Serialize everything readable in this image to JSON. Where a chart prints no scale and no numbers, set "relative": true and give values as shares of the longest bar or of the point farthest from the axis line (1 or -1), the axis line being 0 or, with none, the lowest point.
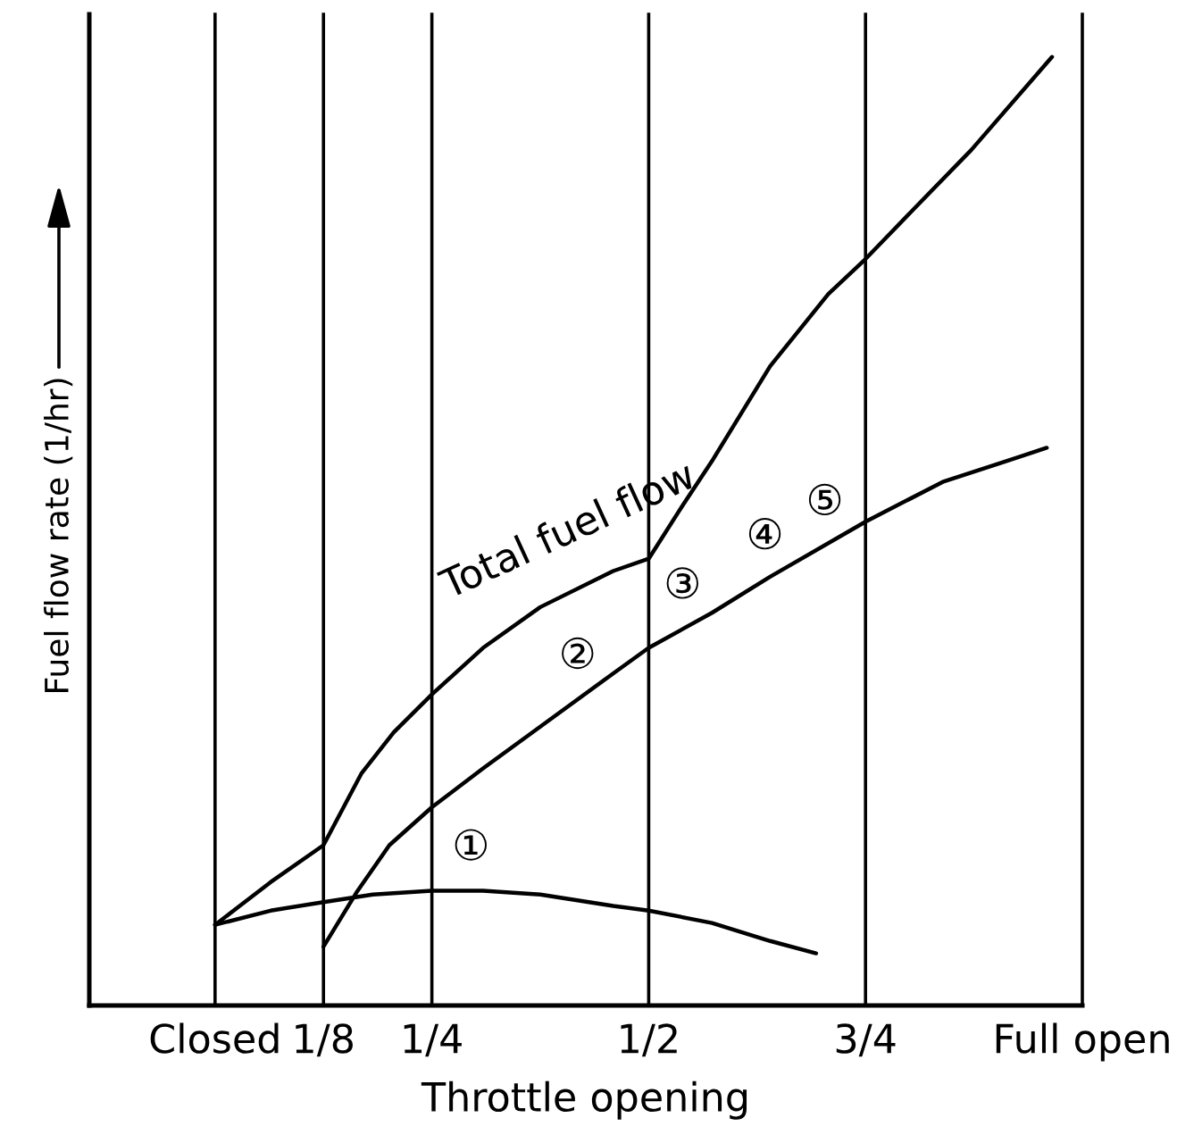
{
  "chart_data": {
    "type": "line",
    "relative": true,
    "xlabel": "Throttle opening",
    "ylabel": "Fuel flow rate (1/hr)",
    "xlim": [
      -0.145,
      1
    ],
    "xticks": [
      {
        "value": 0,
        "label": "Closed"
      },
      {
        "value": 0.125,
        "label": "1/8"
      },
      {
        "value": 0.25,
        "label": "1/4"
      },
      {
        "value": 0.5,
        "label": "1/2"
      },
      {
        "value": 0.75,
        "label": "3/4"
      },
      {
        "value": 1,
        "label": "Full open"
      }
    ],
    "grid": "x",
    "line_style": "solid",
    "series": [
      {
        "name": "Total fuel flow",
        "color": "#000000",
        "x": [
          0,
          0.064,
          0.125,
          0.169,
          0.206,
          0.25,
          0.309,
          0.375,
          0.459,
          0.5,
          0.539,
          0.573,
          0.64,
          0.707,
          0.75,
          0.806,
          0.872,
          0.965
        ],
        "values": [
          0.085,
          0.13,
          0.169,
          0.245,
          0.288,
          0.328,
          0.377,
          0.42,
          0.458,
          0.471,
          0.527,
          0.574,
          0.674,
          0.75,
          0.787,
          0.84,
          0.902,
          1.0
        ]
      },
      {
        "color": "#000000",
        "x": [
          0.125,
          0.163,
          0.201,
          0.25,
          0.309,
          0.375,
          0.459,
          0.5,
          0.573,
          0.64,
          0.75,
          0.839,
          0.903,
          0.959
        ],
        "values": [
          0.062,
          0.119,
          0.169,
          0.209,
          0.25,
          0.294,
          0.35,
          0.377,
          0.414,
          0.452,
          0.51,
          0.552,
          0.571,
          0.588
        ]
      },
      {
        "color": "#000000",
        "x": [
          0,
          0.064,
          0.125,
          0.182,
          0.25,
          0.309,
          0.375,
          0.459,
          0.5,
          0.573,
          0.64,
          0.693
        ],
        "values": [
          0.085,
          0.1,
          0.109,
          0.117,
          0.121,
          0.121,
          0.117,
          0.105,
          0.1,
          0.087,
          0.068,
          0.055
        ]
      }
    ],
    "annotations": [
      {
        "text": "①",
        "x": 0.295,
        "y": 0.121
      },
      {
        "text": "②",
        "x": 0.418,
        "y": 0.323
      },
      {
        "text": "③",
        "x": 0.539,
        "y": 0.397
      },
      {
        "text": "④",
        "x": 0.634,
        "y": 0.449
      },
      {
        "text": "⑤",
        "x": 0.703,
        "y": 0.485
      }
    ]
  }
}
